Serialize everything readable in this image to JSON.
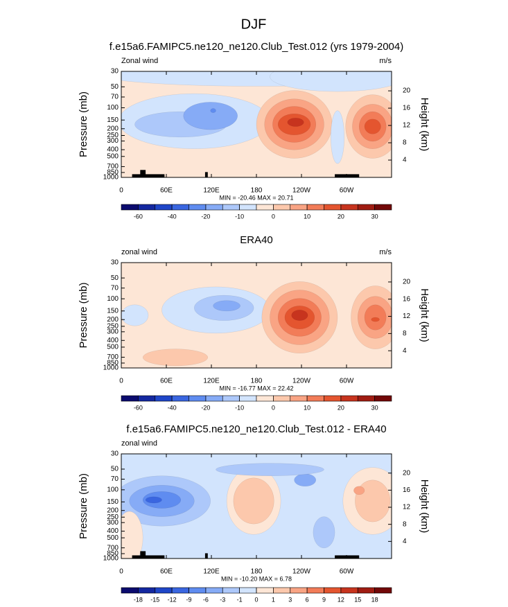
{
  "title": "DJF",
  "chart_data": [
    {
      "type": "contour",
      "title": "f.e15a6.FAMIPC5.ne120_ne120.Club_Test.012 (yrs 1979-2004)",
      "left_label": "Zonal wind",
      "right_label": "m/s",
      "ylabel": "Pressure (mb)",
      "y2label": "Height (km)",
      "stats": "MIN = -20.46  MAX =  20.71",
      "xlim": [
        0,
        360
      ],
      "xticks": [
        0,
        {
          "value": 60,
          "label": "60E"
        },
        {
          "value": 120,
          "label": "120E"
        },
        180,
        {
          "value": 240,
          "label": "120W"
        },
        {
          "value": 300,
          "label": "60W"
        }
      ],
      "ylim": [
        1000,
        30
      ],
      "ylog": true,
      "yticks": [
        30,
        50,
        70,
        100,
        150,
        200,
        250,
        300,
        400,
        500,
        700,
        850,
        1000
      ],
      "y2lim": [
        0,
        24.5
      ],
      "y2ticks": [
        4,
        8,
        12,
        16,
        20
      ],
      "colorbar": {
        "labels": [
          -60,
          -40,
          -20,
          -10,
          0,
          10,
          20,
          30
        ],
        "colors": [
          "#0b0b6e",
          "#1428a0",
          "#1f46c8",
          "#3a66e0",
          "#5f8cf0",
          "#86abf6",
          "#adc8fa",
          "#d2e4fd",
          "#fde6d6",
          "#fcc8ac",
          "#f9a484",
          "#f27c58",
          "#e4552f",
          "#c7341e",
          "#a01c12",
          "#720808"
        ]
      }
    },
    {
      "type": "contour",
      "title": "ERA40",
      "left_label": "zonal wind",
      "right_label": "m/s",
      "ylabel": "Pressure (mb)",
      "y2label": "Height (km)",
      "stats": "MIN = -16.77  MAX =  22.42",
      "xlim": [
        0,
        360
      ],
      "xticks": [
        0,
        {
          "value": 60,
          "label": "60E"
        },
        {
          "value": 120,
          "label": "120E"
        },
        180,
        {
          "value": 240,
          "label": "120W"
        },
        {
          "value": 300,
          "label": "60W"
        }
      ],
      "ylim": [
        1000,
        30
      ],
      "ylog": true,
      "yticks": [
        30,
        50,
        70,
        100,
        150,
        200,
        250,
        300,
        400,
        500,
        700,
        850,
        1000
      ],
      "y2lim": [
        0,
        24.5
      ],
      "y2ticks": [
        4,
        8,
        12,
        16,
        20
      ],
      "colorbar": {
        "labels": [
          -60,
          -40,
          -20,
          -10,
          0,
          10,
          20,
          30
        ],
        "colors": [
          "#0b0b6e",
          "#1428a0",
          "#1f46c8",
          "#3a66e0",
          "#5f8cf0",
          "#86abf6",
          "#adc8fa",
          "#d2e4fd",
          "#fde6d6",
          "#fcc8ac",
          "#f9a484",
          "#f27c58",
          "#e4552f",
          "#c7341e",
          "#a01c12",
          "#720808"
        ]
      }
    },
    {
      "type": "contour",
      "title": "f.e15a6.FAMIPC5.ne120_ne120.Club_Test.012 - ERA40",
      "left_label": "zonal wind",
      "ylabel": "Pressure (mb)",
      "y2label": "Height (km)",
      "stats": "MIN = -10.20  MAX =   6.78",
      "xlim": [
        0,
        360
      ],
      "xticks": [
        0,
        {
          "value": 60,
          "label": "60E"
        },
        {
          "value": 120,
          "label": "120E"
        },
        180,
        {
          "value": 240,
          "label": "120W"
        },
        {
          "value": 300,
          "label": "60W"
        }
      ],
      "ylim": [
        1000,
        30
      ],
      "ylog": true,
      "yticks": [
        30,
        50,
        70,
        100,
        150,
        200,
        250,
        300,
        400,
        500,
        700,
        850,
        1000
      ],
      "y2lim": [
        0,
        24.5
      ],
      "y2ticks": [
        4,
        8,
        12,
        16,
        20
      ],
      "colorbar": {
        "labels": [
          -18,
          -15,
          -12,
          -9,
          -6,
          -3,
          -1,
          0,
          1,
          3,
          6,
          9,
          12,
          15,
          18
        ],
        "colors": [
          "#0b0b6e",
          "#1428a0",
          "#1f46c8",
          "#3a66e0",
          "#5f8cf0",
          "#86abf6",
          "#adc8fa",
          "#d2e4fd",
          "#fde6d6",
          "#fcc8ac",
          "#f9a484",
          "#f27c58",
          "#e4552f",
          "#c7341e",
          "#a01c12",
          "#720808"
        ]
      }
    }
  ]
}
